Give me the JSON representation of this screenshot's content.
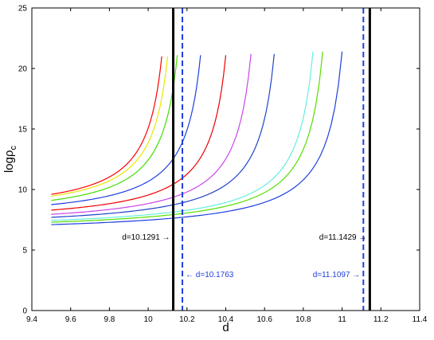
{
  "chart_data": {
    "type": "line",
    "xlabel": "d",
    "ylabel": "logρ_c",
    "ylabel_main": "logρ",
    "ylabel_sub": "c",
    "xlim": [
      9.4,
      11.4
    ],
    "ylim": [
      0,
      25
    ],
    "x_ticks": [
      9.4,
      9.6,
      9.8,
      10,
      10.2,
      10.4,
      10.6,
      10.8,
      11,
      11.2,
      11.4
    ],
    "x_tick_labels": [
      "9.4",
      "9.6",
      "9.8",
      "10",
      "10.2",
      "10.4",
      "10.6",
      "10.8",
      "11",
      "11.2",
      "11.4"
    ],
    "y_ticks": [
      0,
      5,
      10,
      15,
      20,
      25
    ],
    "y_tick_labels": [
      "0",
      "5",
      "10",
      "15",
      "20",
      "25"
    ],
    "grid": false,
    "series": [
      {
        "color": "#ff0000",
        "x_start": 9.5,
        "y_start": 9.6,
        "x_end": 10.07,
        "y_end": 21.0
      },
      {
        "color": "#e8e800",
        "x_start": 9.5,
        "y_start": 9.45,
        "x_end": 10.1,
        "y_end": 21.0
      },
      {
        "color": "#44dd00",
        "x_start": 9.5,
        "y_start": 9.1,
        "x_end": 10.15,
        "y_end": 21.1
      },
      {
        "color": "#1f3fdd",
        "x_start": 9.5,
        "y_start": 8.75,
        "x_end": 10.27,
        "y_end": 21.1
      },
      {
        "color": "#ee0000",
        "x_start": 9.5,
        "y_start": 8.3,
        "x_end": 10.4,
        "y_end": 21.1
      },
      {
        "color": "#cc44ee",
        "x_start": 9.5,
        "y_start": 7.95,
        "x_end": 10.53,
        "y_end": 21.2
      },
      {
        "color": "#2244cc",
        "x_start": 9.5,
        "y_start": 7.7,
        "x_end": 10.65,
        "y_end": 21.2
      },
      {
        "color": "#66eedd",
        "x_start": 9.5,
        "y_start": 7.45,
        "x_end": 10.85,
        "y_end": 21.4
      },
      {
        "color": "#55dd00",
        "x_start": 9.5,
        "y_start": 7.3,
        "x_end": 10.9,
        "y_end": 21.4
      },
      {
        "color": "#1f3fdd",
        "x_start": 9.5,
        "y_start": 7.1,
        "x_end": 11.0,
        "y_end": 21.4
      }
    ],
    "vertical_lines": [
      {
        "x": 10.1291,
        "color": "#000000",
        "style": "solid"
      },
      {
        "x": 10.1763,
        "color": "#1f3fdd",
        "style": "dashed"
      },
      {
        "x": 11.1097,
        "color": "#1f3fdd",
        "style": "dashed"
      },
      {
        "x": 11.1429,
        "color": "#000000",
        "style": "solid"
      }
    ],
    "annotations": [
      {
        "text": "d=10.1291",
        "color": "#000000",
        "arrow": "→",
        "side": "left",
        "x": 10.1291,
        "y": 6.1
      },
      {
        "text": "d=10.1763",
        "color": "#1f3fdd",
        "arrow": "←",
        "side": "right",
        "x": 10.1763,
        "y": 3.0
      },
      {
        "text": "d=11.1097",
        "color": "#1f3fdd",
        "arrow": "→",
        "side": "left",
        "x": 11.1097,
        "y": 3.0
      },
      {
        "text": "d=11.1429",
        "color": "#000000",
        "arrow": "→",
        "side": "left",
        "x": 11.1429,
        "y": 6.1
      }
    ]
  }
}
